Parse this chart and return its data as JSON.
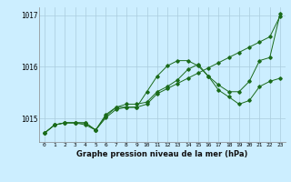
{
  "title": "Graphe pression niveau de la mer (hPa)",
  "background_color": "#cceeff",
  "plot_bg_color": "#cceeff",
  "grid_color": "#aaccdd",
  "line_color": "#1a6b1a",
  "xlim": [
    -0.5,
    23.5
  ],
  "ylim": [
    1014.55,
    1017.15
  ],
  "yticks": [
    1015,
    1016,
    1017
  ],
  "xticks": [
    0,
    1,
    2,
    3,
    4,
    5,
    6,
    7,
    8,
    9,
    10,
    11,
    12,
    13,
    14,
    15,
    16,
    17,
    18,
    19,
    20,
    21,
    22,
    23
  ],
  "series1": [
    1014.72,
    1014.88,
    1014.92,
    1014.92,
    1014.88,
    1014.78,
    1015.08,
    1015.22,
    1015.22,
    1015.22,
    1015.52,
    1015.82,
    1016.02,
    1016.12,
    1016.12,
    1016.02,
    1015.82,
    1015.65,
    1015.52,
    1015.52,
    1015.72,
    1016.12,
    1016.18,
    1017.02
  ],
  "series2": [
    1014.72,
    1014.88,
    1014.92,
    1014.92,
    1014.92,
    1014.78,
    1015.05,
    1015.22,
    1015.28,
    1015.28,
    1015.32,
    1015.52,
    1015.62,
    1015.75,
    1015.95,
    1016.05,
    1015.82,
    1015.55,
    1015.42,
    1015.28,
    1015.35,
    1015.62,
    1015.72,
    1015.78
  ],
  "series3": [
    1014.72,
    1014.88,
    1014.92,
    1014.92,
    1014.92,
    1014.78,
    1015.02,
    1015.18,
    1015.22,
    1015.22,
    1015.28,
    1015.48,
    1015.58,
    1015.68,
    1015.78,
    1015.88,
    1015.98,
    1016.08,
    1016.18,
    1016.28,
    1016.38,
    1016.48,
    1016.58,
    1016.98
  ]
}
